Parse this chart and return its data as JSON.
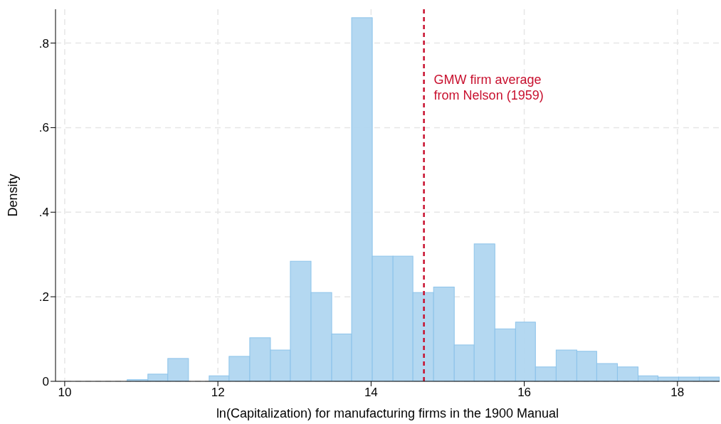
{
  "chart_data": {
    "type": "histogram",
    "xlabel": "ln(Capitalization) for manufacturing firms in the 1900 Manual",
    "ylabel": "Density",
    "bins": [
      10.82,
      11.09,
      11.35,
      11.62,
      11.89,
      12.15,
      12.42,
      12.69,
      12.95,
      13.22,
      13.49,
      13.75,
      14.02,
      14.29,
      14.55,
      14.82,
      15.09,
      15.35,
      15.62,
      15.89,
      16.15,
      16.42,
      16.69,
      16.95,
      17.22,
      17.49,
      17.75,
      18.02,
      18.29,
      18.55
    ],
    "values": [
      0.004,
      0.017,
      0.054,
      0,
      0.013,
      0.059,
      0.103,
      0.074,
      0.284,
      0.21,
      0.112,
      0.86,
      0.296,
      0.296,
      0.21,
      0.223,
      0.086,
      0.325,
      0.124,
      0.14,
      0.034,
      0.074,
      0.071,
      0.042,
      0.034,
      0.013,
      0.01,
      0.01,
      0.01
    ],
    "color": "#b0d6f0",
    "xlim": [
      9.88,
      18.55
    ],
    "xticks": [
      10,
      12,
      14,
      16,
      18
    ],
    "ylim": [
      0,
      0.88
    ],
    "yticks": [
      0,
      {
        "value": 0.2,
        "label": ".2"
      },
      {
        "value": 0.4,
        "label": ".4"
      },
      {
        "value": 0.6,
        "label": ".6"
      },
      {
        "value": 0.8,
        "label": ".8"
      }
    ],
    "grid": true,
    "ref_lines": [
      {
        "axis": "x",
        "value": 14.69,
        "label": "GMW firm average\nfrom Nelson (1959)",
        "color": "#c8102e",
        "line_style": "dashed"
      }
    ]
  }
}
